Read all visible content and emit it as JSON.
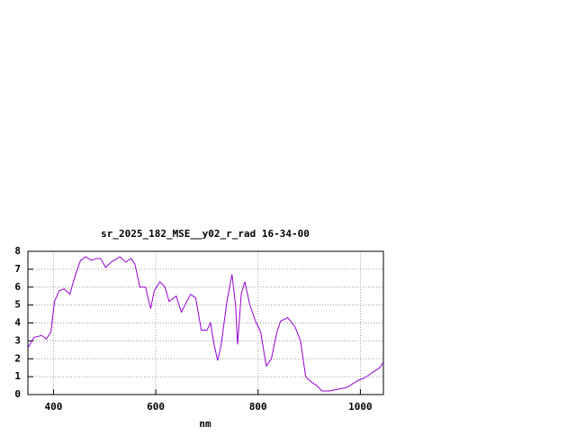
{
  "chart_data": {
    "type": "line",
    "title": "sr_2025_182_MSE__y02_r_rad 16-34-00",
    "x_label": "nm",
    "x": [
      350,
      362,
      377,
      386,
      395,
      402,
      411,
      421,
      432,
      442,
      453,
      463,
      474,
      485,
      492,
      502,
      513,
      530,
      541,
      552,
      559,
      569,
      580,
      590,
      597,
      608,
      618,
      626,
      640,
      650,
      657,
      668,
      678,
      689,
      700,
      707,
      714,
      721,
      728,
      739,
      749,
      756,
      760,
      767,
      774,
      784,
      795,
      805,
      816,
      826,
      837,
      844,
      858,
      872,
      883,
      893,
      904,
      915,
      925,
      939,
      957,
      974,
      985,
      996,
      1006,
      1017,
      1027,
      1038,
      1045
    ],
    "series": [
      {
        "color": "#9400d3",
        "values": [
          2.6,
          3.2,
          3.3,
          3.1,
          3.5,
          5.2,
          5.8,
          5.9,
          5.6,
          6.6,
          7.5,
          7.7,
          7.5,
          7.6,
          7.6,
          7.1,
          7.4,
          7.7,
          7.4,
          7.6,
          7.3,
          6.0,
          6.0,
          4.8,
          5.8,
          6.3,
          6.0,
          5.2,
          5.5,
          4.6,
          5.0,
          5.6,
          5.4,
          3.6,
          3.6,
          4.0,
          2.8,
          1.9,
          2.8,
          5.2,
          6.7,
          5.0,
          2.8,
          5.6,
          6.3,
          5.0,
          4.1,
          3.5,
          1.6,
          2.0,
          3.5,
          4.1,
          4.3,
          3.8,
          3.0,
          1.0,
          0.7,
          0.5,
          0.2,
          0.2,
          0.3,
          0.4,
          0.6,
          0.8,
          0.9,
          1.1,
          1.3,
          1.5,
          1.8
        ]
      }
    ],
    "xlim": [
      350,
      1045
    ],
    "ylim": [
      0,
      8
    ],
    "xticks": [
      400,
      600,
      800,
      1000
    ],
    "yticks": [
      0,
      1,
      2,
      3,
      4,
      5,
      6,
      7,
      8
    ],
    "grid": true
  }
}
